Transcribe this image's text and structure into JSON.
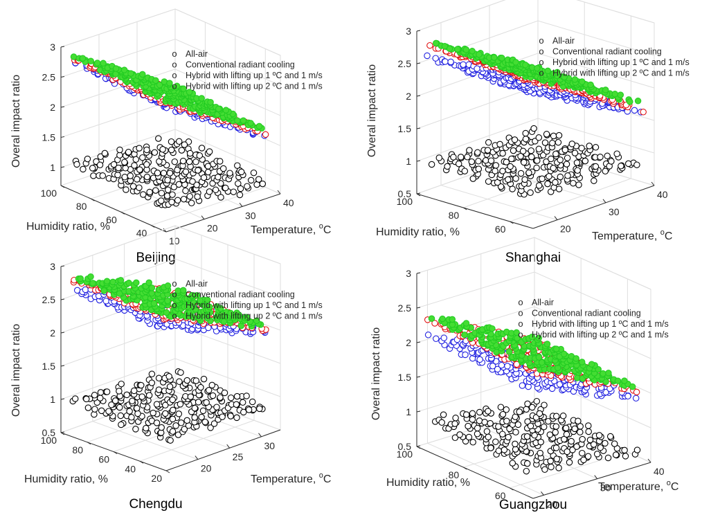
{
  "colors": {
    "all_air": "#000000",
    "conventional": "#1f1fe0",
    "hybrid1": "#e01010",
    "hybrid2": "#22cc22",
    "hybrid2_fill": "#44dd33",
    "grid": "#dedede",
    "axis": "#262626"
  },
  "legend_labels": [
    "All-air",
    "Conventional radiant cooling",
    "Hybrid with lifting up 1 ºC and 1 m/s",
    "Hybrid with lifting up 2 ºC and 1 m/s"
  ],
  "chart_data": [
    {
      "type": "scatter",
      "projection": "3d",
      "title": "Beijing",
      "xlabel": "Humidity ratio, %",
      "ylabel": "Temperature, °C",
      "zlabel": "Overal impact ratio",
      "xlim": [
        30,
        100
      ],
      "ylim": [
        10,
        40
      ],
      "zlim": [
        0.7,
        3
      ],
      "xticks": [
        40,
        60,
        80,
        100
      ],
      "yticks": [
        10,
        20,
        30,
        40
      ],
      "zticks": [
        1,
        1.5,
        2,
        2.5,
        3
      ],
      "legend_position": "top",
      "series": [
        {
          "name": "All-air",
          "z_at_t_min": 1.05,
          "z_at_t_max": 0.82,
          "z_spread": 0.15
        },
        {
          "name": "Conventional radiant cooling",
          "z_at_t_min": 2.75,
          "z_at_t_max": 1.55
        },
        {
          "name": "Hybrid with lifting up 1 ºC and 1 m/s",
          "z_at_t_min": 2.8,
          "z_at_t_max": 1.6
        },
        {
          "name": "Hybrid with lifting up 2 ºC and 1 m/s",
          "z_at_t_min": 2.85,
          "z_at_t_max": 1.65
        }
      ]
    },
    {
      "type": "scatter",
      "projection": "3d",
      "title": "Shanghai",
      "xlabel": "Humidity ratio, %",
      "ylabel": "Temperature, °C",
      "zlabel": "Overal impact ratio",
      "xlim": [
        50,
        100
      ],
      "ylim": [
        15,
        40
      ],
      "zlim": [
        0.5,
        3
      ],
      "xticks": [
        60,
        80,
        100
      ],
      "yticks": [
        20,
        30,
        40
      ],
      "zticks": [
        0.5,
        1,
        1.5,
        2,
        2.5,
        3
      ],
      "legend_position": "top",
      "series": [
        {
          "name": "All-air",
          "z_at_t_min": 0.95,
          "z_at_t_max": 0.8,
          "z_spread": 0.1
        },
        {
          "name": "Conventional radiant cooling",
          "z_at_t_min": 2.55,
          "z_at_t_max": 1.55
        },
        {
          "name": "Hybrid with lifting up 1 ºC and 1 m/s",
          "z_at_t_min": 2.75,
          "z_at_t_max": 1.6
        },
        {
          "name": "Hybrid with lifting up 2 ºC and 1 m/s",
          "z_at_t_min": 2.8,
          "z_at_t_max": 1.7
        }
      ]
    },
    {
      "type": "scatter",
      "projection": "3d",
      "title": "Chengdu",
      "xlabel": "Humidity ratio, %",
      "ylabel": "Temperature, °C",
      "zlabel": "Overal impact ratio",
      "xlim": [
        20,
        100
      ],
      "ylim": [
        15,
        33
      ],
      "zlim": [
        0.5,
        3
      ],
      "xticks": [
        20,
        40,
        60,
        80,
        100
      ],
      "yticks": [
        20,
        25,
        30
      ],
      "zticks": [
        0.5,
        1,
        1.5,
        2,
        2.5,
        3
      ],
      "legend_position": "top",
      "series": [
        {
          "name": "All-air",
          "z_at_t_min": 0.92,
          "z_at_t_max": 0.8,
          "z_spread": 0.12
        },
        {
          "name": "Conventional radiant cooling",
          "z_at_t_min": 2.6,
          "z_at_t_max": 1.9
        },
        {
          "name": "Hybrid with lifting up 1 ºC and 1 m/s",
          "z_at_t_min": 2.75,
          "z_at_t_max": 1.95
        },
        {
          "name": "Hybrid with lifting up 2 ºC and 1 m/s",
          "z_at_t_min": 2.8,
          "z_at_t_max": 2.0
        }
      ]
    },
    {
      "type": "scatter",
      "projection": "3d",
      "title": "Guangzhou",
      "xlabel": "Humidity ratio, %",
      "ylabel": "Temperature, °C",
      "zlabel": "Overal impact ratio",
      "xlim": [
        50,
        100
      ],
      "ylim": [
        18,
        40
      ],
      "zlim": [
        0.5,
        3
      ],
      "xticks": [
        60,
        80,
        100
      ],
      "yticks": [
        20,
        30,
        40
      ],
      "zticks": [
        0.5,
        1,
        1.5,
        2,
        2.5,
        3
      ],
      "legend_position": "top",
      "series": [
        {
          "name": "All-air",
          "z_at_t_min": 0.85,
          "z_at_t_max": 0.6,
          "z_spread": 0.12
        },
        {
          "name": "Conventional radiant cooling",
          "z_at_t_min": 2.05,
          "z_at_t_max": 1.35
        },
        {
          "name": "Hybrid with lifting up 1 ºC and 1 m/s",
          "z_at_t_min": 2.3,
          "z_at_t_max": 1.45
        },
        {
          "name": "Hybrid with lifting up 2 ºC and 1 m/s",
          "z_at_t_min": 2.35,
          "z_at_t_max": 1.5
        }
      ]
    }
  ]
}
